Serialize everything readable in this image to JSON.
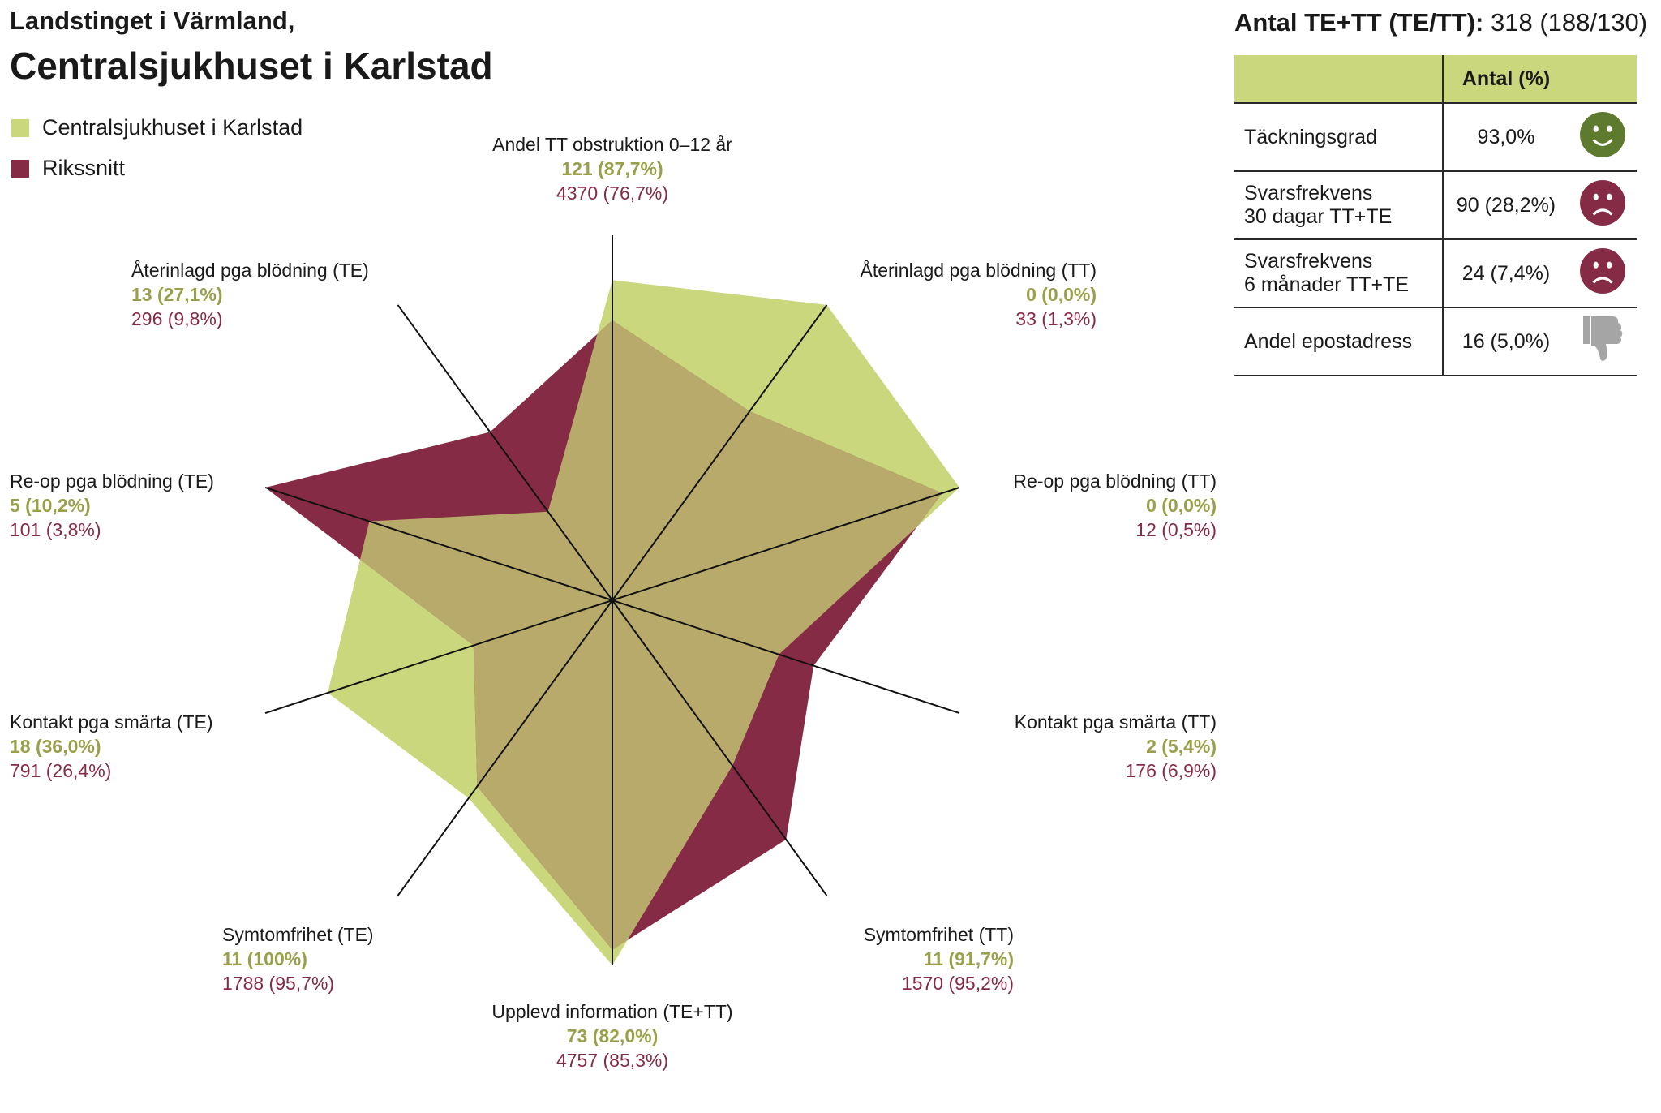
{
  "header": {
    "title_line1": "Landstinget i Värmland,",
    "title_line2": "Centralsjukhuset i Karlstad"
  },
  "legend": [
    {
      "label": "Centralsjukhuset i Karlstad",
      "color": "#cad77d"
    },
    {
      "label": "Rikssnitt",
      "color": "#862b46"
    }
  ],
  "colors": {
    "hospital": "#cad77d",
    "national": "#862b46",
    "overlap": "#b7aa6a",
    "hospital_text": "#9aa04a",
    "national_text": "#862b46"
  },
  "chart_data": {
    "type": "radar",
    "series": [
      {
        "name": "Centralsjukhuset i Karlstad",
        "values": [
          87.7,
          100.0,
          100.0,
          48.0,
          56.0,
          100.0,
          67.0,
          82.0,
          70.0,
          30.0
        ]
      },
      {
        "name": "Rikssnitt",
        "values": [
          76.7,
          64.0,
          95.0,
          58.0,
          81.0,
          95.7,
          63.0,
          40.0,
          100.0,
          57.0
        ]
      }
    ],
    "axes": [
      {
        "name": "Andel TT obstruktion 0–12 år",
        "hospital": "121 (87,7%)",
        "national": "4370 (76,7%)"
      },
      {
        "name": "Återinlagd pga blödning (TT)",
        "hospital": "0 (0,0%)",
        "national": "33 (1,3%)"
      },
      {
        "name": "Re-op pga blödning (TT)",
        "hospital": "0 (0,0%)",
        "national": "12 (0,5%)"
      },
      {
        "name": "Kontakt pga smärta (TT)",
        "hospital": "2 (5,4%)",
        "national": "176 (6,9%)"
      },
      {
        "name": "Symtomfrihet (TT)",
        "hospital": "11 (91,7%)",
        "national": "1570 (95,2%)"
      },
      {
        "name": "Upplevd information (TE+TT)",
        "hospital": "73 (82,0%)",
        "national": "4757 (85,3%)"
      },
      {
        "name": "Symtomfrihet (TE)",
        "hospital": "11 (100%)",
        "national": "1788 (95,7%)"
      },
      {
        "name": "Kontakt pga smärta (TE)",
        "hospital": "18 (36,0%)",
        "national": "791 (26,4%)"
      },
      {
        "name": "Re-op pga blödning (TE)",
        "hospital": "5 (10,2%)",
        "national": "101 (3,8%)"
      },
      {
        "name": "Återinlagd pga blödning (TE)",
        "hospital": "13 (27,1%)",
        "national": "296 (9,8%)"
      }
    ]
  },
  "summary": {
    "heading_bold": "Antal TE+TT (TE/TT):",
    "heading_value": "318 (188/130)",
    "col_header": "Antal (%)",
    "rows": [
      {
        "label_line1": "Täckningsgrad",
        "label_line2": "",
        "value": "93,0%",
        "icon": "smiley-happy-icon",
        "icon_color": "#5e7a2e"
      },
      {
        "label_line1": "Svarsfrekvens",
        "label_line2": "30 dagar TT+TE",
        "value": "90 (28,2%)",
        "icon": "smiley-sad-icon",
        "icon_color": "#862b46"
      },
      {
        "label_line1": "Svarsfrekvens",
        "label_line2": "6 månader TT+TE",
        "value": "24 (7,4%)",
        "icon": "smiley-sad-icon",
        "icon_color": "#862b46"
      },
      {
        "label_line1": "Andel epostadress",
        "label_line2": "",
        "value": "16 (5,0%)",
        "icon": "thumbs-down-icon",
        "icon_color": "#a5a5a5"
      }
    ]
  }
}
